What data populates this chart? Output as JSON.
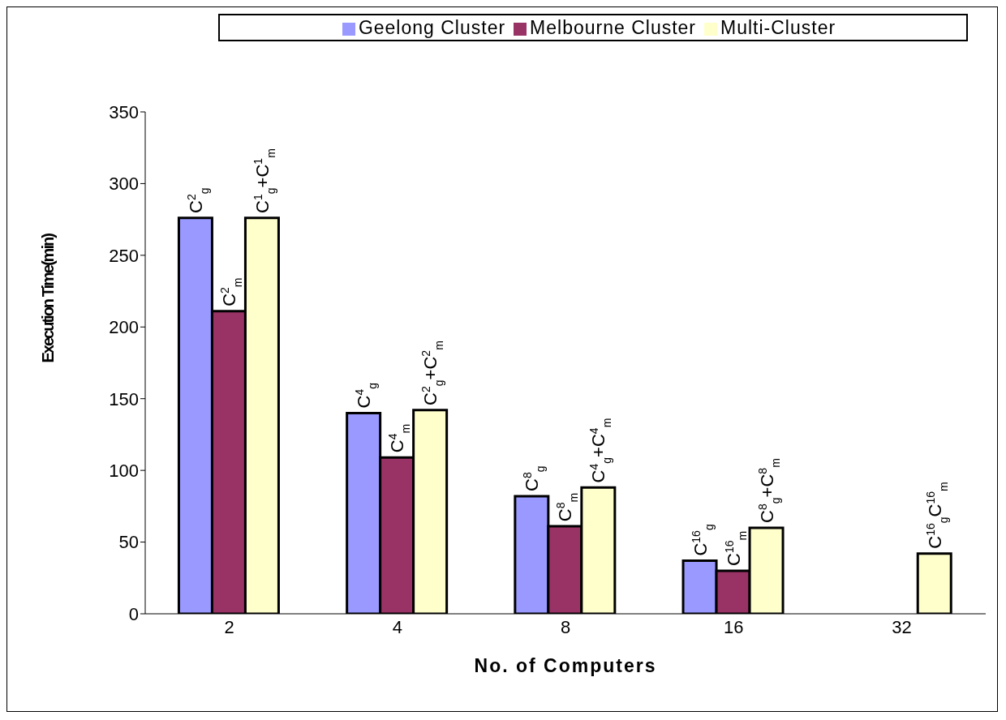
{
  "chart_data": {
    "type": "bar",
    "xlabel": "No. of Computers",
    "ylabel": "Execution Time(min)",
    "categories": [
      "2",
      "4",
      "8",
      "16",
      "32"
    ],
    "series": [
      {
        "name": "Geelong Cluster",
        "color": "#9999ff",
        "values": [
          276,
          140,
          82,
          37,
          null
        ]
      },
      {
        "name": "Melbourne Cluster",
        "color": "#993366",
        "values": [
          211,
          109,
          61,
          30,
          null
        ]
      },
      {
        "name": "Multi-Cluster",
        "color": "#ffffcc",
        "values": [
          276,
          142,
          88,
          60,
          42
        ]
      }
    ],
    "annotations": [
      "C$^{2}$$_{g}$",
      "C$^{2}$$_{m}$",
      "C$^{1}$$_{g}$+C$^{1}$$_{m}$",
      "C$^{4}$$_{g}$",
      "C$^{4}$$_{m}$",
      "C$^{2}$$_{g}$+C$^{2}$$_{m}$",
      "C$^{8}$$_{g}$",
      "C$^{8}$$_{m}$",
      "C$^{4}$$_{g}$+C$^{4}$$_{m}$",
      "C$^{16}$$_{g}$",
      "C$^{16}$$_{m}$",
      "C$^{8}$$_{g}$+C$^{8}$$_{m}$",
      "C$^{16}$$_{g}$C$^{16}$$_{m}$"
    ],
    "ylim": [
      0,
      350
    ],
    "yticks": [
      0,
      50,
      100,
      150,
      200,
      250,
      300,
      350
    ],
    "grid": false,
    "legend": "top"
  }
}
